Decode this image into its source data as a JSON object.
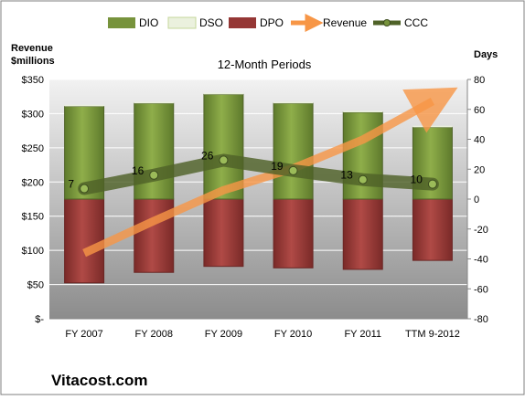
{
  "chart_data": {
    "type": "bar",
    "title": "12-Month Periods",
    "y_left_label_line1": "Revenue",
    "y_left_label_line2": "$millions",
    "y_right_label": "Days",
    "footer": "Vitacost.com",
    "categories": [
      "FY 2007",
      "FY 2008",
      "FY 2009",
      "FY 2010",
      "FY 2011",
      "TTM 9-2012"
    ],
    "left_axis": {
      "min": 0,
      "max": 350,
      "step": 50,
      "ticks": [
        "$-",
        "$50",
        "$100",
        "$150",
        "$200",
        "$250",
        "$300",
        "$350"
      ]
    },
    "right_axis": {
      "min": -80,
      "max": 80,
      "step": 20,
      "ticks": [
        "-80",
        "-60",
        "-40",
        "-20",
        "0",
        "20",
        "40",
        "60",
        "80"
      ]
    },
    "legend": [
      "DIO",
      "DSO",
      "DPO",
      "Revenue",
      "CCC"
    ],
    "series": [
      {
        "name": "DIO",
        "axis": "right",
        "color": "#77933C",
        "values": [
          62,
          64,
          70,
          64,
          58,
          48
        ]
      },
      {
        "name": "DSO",
        "axis": "right",
        "color": "#EBF1DE",
        "values": [
          1,
          1,
          1,
          1,
          1,
          1
        ]
      },
      {
        "name": "DPO",
        "axis": "right",
        "color": "#953735",
        "values": [
          -56,
          -49,
          -45,
          -46,
          -47,
          -41
        ]
      },
      {
        "name": "Revenue",
        "axis": "left",
        "color": "#F79646",
        "values": [
          96,
          143,
          188,
          220,
          262,
          318
        ]
      },
      {
        "name": "CCC",
        "axis": "right",
        "color": "#4F6228",
        "values": [
          7,
          16,
          26,
          19,
          13,
          10
        ],
        "labels": [
          "7",
          "16",
          "26",
          "19",
          "13",
          "10"
        ]
      }
    ],
    "colors": {
      "plot_bg_top": "#f2f2f2",
      "plot_bg_bottom": "#8c8c8c",
      "grid": "#ffffff",
      "text": "#000000"
    }
  }
}
